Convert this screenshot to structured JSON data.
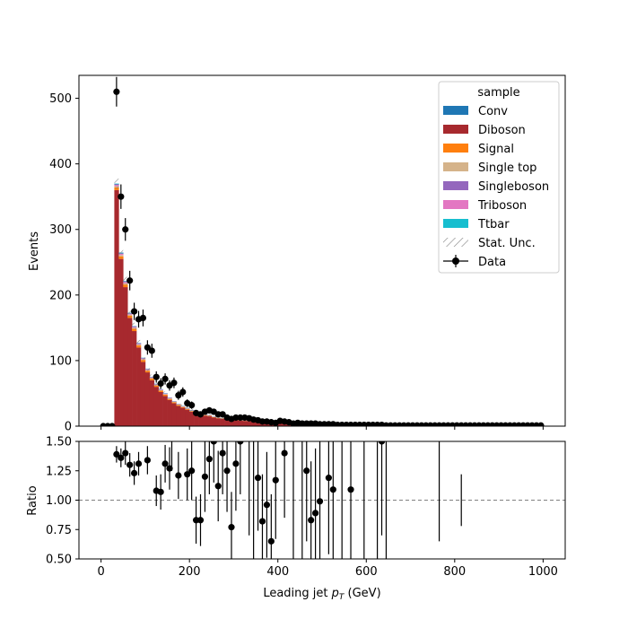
{
  "chart_data": [
    {
      "type": "bar",
      "stacked": true,
      "ylabel": "Events",
      "xlim": [
        -50,
        1050
      ],
      "ylim": [
        0,
        535
      ],
      "xticks": [
        0,
        200,
        400,
        600,
        800,
        1000
      ],
      "yticks": [
        0,
        100,
        200,
        300,
        400,
        500
      ],
      "legend": {
        "title": "sample",
        "placement": "top-right",
        "entries": [
          "Conv",
          "Diboson",
          "Signal",
          "Single top",
          "Singleboson",
          "Triboson",
          "Ttbar",
          "Stat. Unc.",
          "Data"
        ]
      },
      "colors": {
        "Conv": "#1f77b4",
        "Diboson": "#a7292e",
        "Signal": "#ff7f0e",
        "Single top": "#d5b38a",
        "Singleboson": "#9467bd",
        "Triboson": "#e377c2",
        "Ttbar": "#17becf",
        "Data": "#000000"
      },
      "bins": {
        "start": 0,
        "width": 10,
        "count": 100
      },
      "series": [
        {
          "name": "Diboson",
          "values": [
            0,
            0,
            0,
            360,
            255,
            212,
            165,
            145,
            120,
            98,
            82,
            70,
            60,
            52,
            46,
            40,
            35,
            31,
            28,
            25,
            22,
            20,
            18,
            16,
            15,
            13,
            12,
            11,
            10,
            9.5,
            9,
            8.5,
            8,
            7.5,
            7,
            6.6,
            6.2,
            5.8,
            5.4,
            5,
            4.6,
            4.3,
            4,
            3.7,
            3.4,
            3.1,
            2.9,
            2.7,
            2.5,
            2.3,
            2.1,
            2,
            1.9,
            1.8,
            1.7,
            1.6,
            1.5,
            1.4,
            1.3,
            1.2,
            1.1,
            1,
            1,
            0.9,
            0.9,
            0.8,
            0.8,
            0.7,
            0.7,
            0.6,
            0.6,
            0.6,
            0.5,
            0.5,
            0.5,
            0.4,
            0.4,
            0.4,
            0.4,
            0.3,
            0.3,
            0.3,
            0.3,
            0.3,
            0.2,
            0.2,
            0.2,
            0.2,
            0.2,
            0.2,
            0.2,
            0.1,
            0.1,
            0.1,
            0.1,
            0.1,
            0.1,
            0.1,
            0.1,
            0.1
          ]
        },
        {
          "name": "Signal",
          "values": [
            0,
            0,
            0,
            4,
            4,
            4,
            3.5,
            3.5,
            3,
            3,
            2.5,
            2.5,
            2,
            2,
            2,
            1.5,
            1.5,
            1.5,
            1.2,
            1.2,
            1,
            1,
            1,
            0.8,
            0.8,
            0.8,
            0.6,
            0.6,
            0.6,
            0.5,
            0.5,
            0.5,
            0.4,
            0.4,
            0.4,
            0.3,
            0.3,
            0.3,
            0.3,
            0.2,
            0.2,
            0.2,
            0.2,
            0.2,
            0.2,
            0.1,
            0.1,
            0.1,
            0.1,
            0.1,
            0.1,
            0.1,
            0.1,
            0.1,
            0.1,
            0.1,
            0.1,
            0.1,
            0.1,
            0.1,
            0,
            0,
            0,
            0,
            0,
            0,
            0,
            0,
            0,
            0,
            0,
            0,
            0,
            0,
            0,
            0,
            0,
            0,
            0,
            0,
            0,
            0,
            0,
            0,
            0,
            0,
            0,
            0,
            0,
            0,
            0,
            0,
            0,
            0,
            0,
            0,
            0,
            0,
            0,
            0
          ]
        },
        {
          "name": "Single top",
          "values": [
            0,
            0,
            0,
            2,
            2,
            2,
            1.5,
            1.5,
            1.5,
            1.2,
            1.2,
            1,
            1,
            1,
            0.8,
            0.8,
            0.8,
            0.6,
            0.6,
            0.6,
            0.5,
            0.5,
            0.5,
            0.4,
            0.4,
            0.4,
            0.3,
            0.3,
            0.3,
            0.3,
            0.2,
            0.2,
            0.2,
            0.2,
            0.2,
            0.2,
            0.1,
            0.1,
            0.1,
            0.1,
            0.1,
            0.1,
            0.1,
            0.1,
            0.1,
            0.1,
            0.1,
            0.1,
            0.1,
            0.1,
            0,
            0,
            0,
            0,
            0,
            0,
            0,
            0,
            0,
            0,
            0,
            0,
            0,
            0,
            0,
            0,
            0,
            0,
            0,
            0,
            0,
            0,
            0,
            0,
            0,
            0,
            0,
            0,
            0,
            0,
            0,
            0,
            0,
            0,
            0,
            0,
            0,
            0,
            0,
            0,
            0,
            0,
            0,
            0,
            0,
            0,
            0,
            0,
            0,
            0
          ]
        },
        {
          "name": "Triboson",
          "values": [
            0,
            0,
            0,
            2,
            2,
            2,
            1.5,
            1.5,
            1.2,
            1.2,
            1,
            1,
            1,
            0.8,
            0.8,
            0.8,
            0.6,
            0.6,
            0.6,
            0.5,
            0.5,
            0.5,
            0.4,
            0.4,
            0.4,
            0.3,
            0.3,
            0.3,
            0.3,
            0.2,
            0.2,
            0.2,
            0.2,
            0.2,
            0.2,
            0.1,
            0.1,
            0.1,
            0.1,
            0.1,
            0.1,
            0.1,
            0.1,
            0.1,
            0.1,
            0.1,
            0.1,
            0.1,
            0.1,
            0.1,
            0,
            0,
            0,
            0,
            0,
            0,
            0,
            0,
            0,
            0,
            0,
            0,
            0,
            0,
            0,
            0,
            0,
            0,
            0,
            0,
            0,
            0,
            0,
            0,
            0,
            0,
            0,
            0,
            0,
            0,
            0,
            0,
            0,
            0,
            0,
            0,
            0,
            0,
            0,
            0,
            0,
            0,
            0,
            0,
            0,
            0,
            0,
            0,
            0,
            0
          ]
        },
        {
          "name": "Conv",
          "values": [
            0,
            0,
            0,
            1,
            1,
            0.8,
            0.8,
            0.6,
            0.6,
            0.5,
            0.5,
            0.4,
            0.4,
            0.3,
            0.3,
            0.3,
            0.2,
            0.2,
            0.2,
            0.2,
            0.1,
            0.1,
            0.1,
            0.1,
            0.1,
            0.1,
            0.1,
            0.1,
            0.1,
            0.1,
            0,
            0,
            0,
            0,
            0,
            0,
            0,
            0,
            0,
            0,
            0,
            0,
            0,
            0,
            0,
            0,
            0,
            0,
            0,
            0,
            0,
            0,
            0,
            0,
            0,
            0,
            0,
            0,
            0,
            0,
            0,
            0,
            0,
            0,
            0,
            0,
            0,
            0,
            0,
            0,
            0,
            0,
            0,
            0,
            0,
            0,
            0,
            0,
            0,
            0,
            0,
            0,
            0,
            0,
            0,
            0,
            0,
            0,
            0,
            0,
            0,
            0,
            0,
            0,
            0,
            0,
            0,
            0,
            0,
            0
          ]
        },
        {
          "name": "Singleboson",
          "values": [
            0,
            0,
            0,
            0.5,
            0.5,
            0.5,
            0.4,
            0.4,
            0.3,
            0.3,
            0.3,
            0.2,
            0.2,
            0.2,
            0.2,
            0.1,
            0.1,
            0.1,
            0.1,
            0.1,
            0.1,
            0.1,
            0.1,
            0.1,
            0.1,
            0,
            0,
            0,
            0,
            0,
            0,
            0,
            0,
            0,
            0,
            0,
            0,
            0,
            0,
            0,
            0,
            0,
            0,
            0,
            0,
            0,
            0,
            0,
            0,
            0,
            0,
            0,
            0,
            0,
            0,
            0,
            0,
            0,
            0,
            0,
            0,
            0,
            0,
            0,
            0,
            0,
            0,
            0,
            0,
            0,
            0,
            0,
            0,
            0,
            0,
            0,
            0,
            0,
            0,
            0,
            0,
            0,
            0,
            0,
            0,
            0,
            0,
            0,
            0,
            0,
            0,
            0,
            0,
            0,
            0,
            0,
            0,
            0,
            0,
            0
          ]
        },
        {
          "name": "Ttbar",
          "values": [
            0,
            0,
            0,
            0.5,
            0.5,
            0.4,
            0.4,
            0.3,
            0.3,
            0.3,
            0.2,
            0.2,
            0.2,
            0.2,
            0.1,
            0.1,
            0.1,
            0.1,
            0.1,
            0.1,
            0.1,
            0.1,
            0,
            0,
            0,
            0,
            0,
            0,
            0,
            0,
            0,
            0,
            0,
            0,
            0,
            0,
            0,
            0,
            0,
            0,
            0,
            0,
            0,
            0,
            0,
            0,
            0,
            0,
            0,
            0,
            0,
            0,
            0,
            0,
            0,
            0,
            0,
            0,
            0,
            0,
            0,
            0,
            0,
            0,
            0,
            0,
            0,
            0,
            0,
            0,
            0,
            0,
            0,
            0,
            0,
            0,
            0,
            0,
            0,
            0,
            0,
            0,
            0,
            0,
            0,
            0,
            0,
            0,
            0,
            0,
            0,
            0,
            0,
            0,
            0,
            0,
            0,
            0,
            0,
            0
          ]
        }
      ],
      "data": {
        "name": "Data",
        "values": [
          0,
          0,
          0,
          510,
          350,
          300,
          222,
          175,
          163,
          165,
          120,
          115,
          75,
          65,
          72,
          62,
          66,
          47,
          52,
          35,
          32,
          20,
          18,
          22,
          24,
          22,
          18,
          18,
          13,
          11,
          13,
          13,
          13,
          12,
          10,
          9,
          7,
          7,
          6,
          5,
          8,
          7,
          6,
          4,
          5,
          4,
          4,
          4,
          4,
          3,
          3,
          3,
          3,
          2,
          2,
          2,
          2,
          2,
          2,
          2,
          2,
          2,
          2,
          2,
          1,
          1,
          1,
          1,
          1,
          1,
          1,
          1,
          1,
          1,
          1,
          1,
          1,
          1,
          1,
          1,
          1,
          1,
          1,
          1,
          1,
          1,
          1,
          1,
          1,
          1,
          1,
          1,
          1,
          1,
          1,
          1,
          1,
          1,
          1,
          1
        ]
      }
    },
    {
      "type": "scatter",
      "xlabel": "Leading jet  p_T (GeV)",
      "ylabel": "Ratio",
      "xlim": [
        -50,
        1050
      ],
      "ylim": [
        0.5,
        1.5
      ],
      "xticks": [
        0,
        200,
        400,
        600,
        800,
        1000
      ],
      "yticks": [
        0.5,
        0.75,
        1.0,
        1.25,
        1.5
      ],
      "reference_line": 1.0,
      "points": [
        {
          "x": 35,
          "y": 1.39,
          "err": 0.07
        },
        {
          "x": 45,
          "y": 1.36,
          "err": 0.08
        },
        {
          "x": 55,
          "y": 1.4,
          "err": 0.1
        },
        {
          "x": 65,
          "y": 1.3,
          "err": 0.1
        },
        {
          "x": 75,
          "y": 1.23,
          "err": 0.1
        },
        {
          "x": 85,
          "y": 1.31,
          "err": 0.1
        },
        {
          "x": 105,
          "y": 1.34,
          "err": 0.12
        },
        {
          "x": 125,
          "y": 1.08,
          "err": 0.13
        },
        {
          "x": 135,
          "y": 1.07,
          "err": 0.15
        },
        {
          "x": 145,
          "y": 1.31,
          "err": 0.16
        },
        {
          "x": 155,
          "y": 1.27,
          "err": 0.18
        },
        {
          "x": 175,
          "y": 1.21,
          "err": 0.2
        },
        {
          "x": 195,
          "y": 1.22,
          "err": 0.22
        },
        {
          "x": 205,
          "y": 1.25,
          "err": 0.25
        },
        {
          "x": 215,
          "y": 0.83,
          "err": 0.2
        },
        {
          "x": 225,
          "y": 0.83,
          "err": 0.22
        },
        {
          "x": 235,
          "y": 1.2,
          "err": 0.3
        },
        {
          "x": 245,
          "y": 1.35,
          "err": 0.3
        },
        {
          "x": 255,
          "y": 1.5,
          "err": 0.35
        },
        {
          "x": 265,
          "y": 1.12,
          "err": 0.3
        },
        {
          "x": 275,
          "y": 1.4,
          "err": 0.35
        },
        {
          "x": 285,
          "y": 1.25,
          "err": 0.35
        },
        {
          "x": 295,
          "y": 0.77,
          "err": 0.3
        },
        {
          "x": 305,
          "y": 1.31,
          "err": 0.4
        },
        {
          "x": 315,
          "y": 1.5,
          "err": 0.45
        },
        {
          "x": 355,
          "y": 1.19,
          "err": 0.45
        },
        {
          "x": 365,
          "y": 0.82,
          "err": 0.4
        },
        {
          "x": 375,
          "y": 0.96,
          "err": 0.45
        },
        {
          "x": 385,
          "y": 0.65,
          "err": 0.4
        },
        {
          "x": 395,
          "y": 1.17,
          "err": 0.5
        },
        {
          "x": 415,
          "y": 1.4,
          "err": 0.55
        },
        {
          "x": 465,
          "y": 1.25,
          "err": 0.6
        },
        {
          "x": 475,
          "y": 0.83,
          "err": 0.5
        },
        {
          "x": 485,
          "y": 0.89,
          "err": 0.55
        },
        {
          "x": 495,
          "y": 0.99,
          "err": 0.6
        },
        {
          "x": 515,
          "y": 1.19,
          "err": 0.65
        },
        {
          "x": 525,
          "y": 1.09,
          "err": 0.65
        },
        {
          "x": 565,
          "y": 1.09,
          "err": 0.7
        },
        {
          "x": 635,
          "y": 1.5,
          "err": 0.8
        }
      ],
      "error_bars_only": [
        {
          "x": 160,
          "y": 1.45,
          "err": 0.2
        },
        {
          "x": 335,
          "y": 1.2,
          "err": 0.5
        },
        {
          "x": 345,
          "y": 1.1,
          "err": 0.6
        },
        {
          "x": 435,
          "y": 1.2,
          "err": 0.8
        },
        {
          "x": 455,
          "y": 1.2,
          "err": 0.8
        },
        {
          "x": 545,
          "y": 1.2,
          "err": 0.8
        },
        {
          "x": 595,
          "y": 1.2,
          "err": 0.75
        },
        {
          "x": 625,
          "y": 1.0,
          "err": 0.9
        },
        {
          "x": 645,
          "y": 1.0,
          "err": 0.9
        },
        {
          "x": 765,
          "y": 1.15,
          "err": 0.5
        },
        {
          "x": 815,
          "y": 1.0,
          "err": 0.22
        }
      ]
    }
  ]
}
